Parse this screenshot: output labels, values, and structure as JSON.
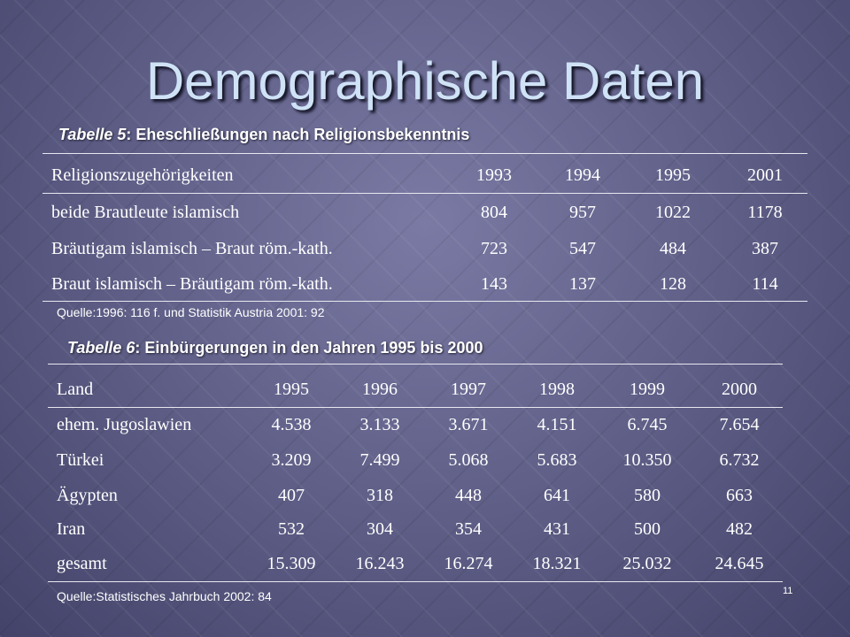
{
  "slide": {
    "title": "Demographische Daten",
    "page_number": "11"
  },
  "table5": {
    "caption_italic": "Tabelle 5",
    "caption_text": ": Eheschließungen nach Religionsbekenntnis",
    "headers": [
      "Religionszugehörigkeiten",
      "1993",
      "1994",
      "1995",
      "2001"
    ],
    "rows": [
      [
        "beide Brautleute islamisch",
        "804",
        "957",
        "1022",
        "1178"
      ],
      [
        "Bräutigam islamisch – Braut röm.-kath.",
        "723",
        "547",
        "484",
        "387"
      ],
      [
        "Braut islamisch – Bräutigam röm.-kath.",
        "143",
        "137",
        "128",
        "114"
      ]
    ],
    "source": "Quelle:1996: 116 f. und Statistik Austria 2001: 92"
  },
  "table6": {
    "caption_italic": "Tabelle 6",
    "caption_text": ": Einbürgerungen in den Jahren 1995 bis 2000",
    "headers": [
      "Land",
      "1995",
      "1996",
      "1997",
      "1998",
      "1999",
      "2000"
    ],
    "rows": [
      [
        "ehem. Jugoslawien",
        "4.538",
        "3.133",
        "3.671",
        "4.151",
        "6.745",
        "7.654"
      ],
      [
        "Türkei",
        "3.209",
        "7.499",
        "5.068",
        "5.683",
        "10.350",
        "6.732"
      ],
      [
        "Ägypten",
        "407",
        "318",
        "448",
        "641",
        "580",
        "663"
      ],
      [
        "Iran",
        "532",
        "304",
        "354",
        "431",
        "500",
        "482"
      ],
      [
        "gesamt",
        "15.309",
        "16.243",
        "16.274",
        "18.321",
        "25.032",
        "24.645"
      ]
    ],
    "source": "Quelle:Statistisches Jahrbuch 2002: 84"
  }
}
